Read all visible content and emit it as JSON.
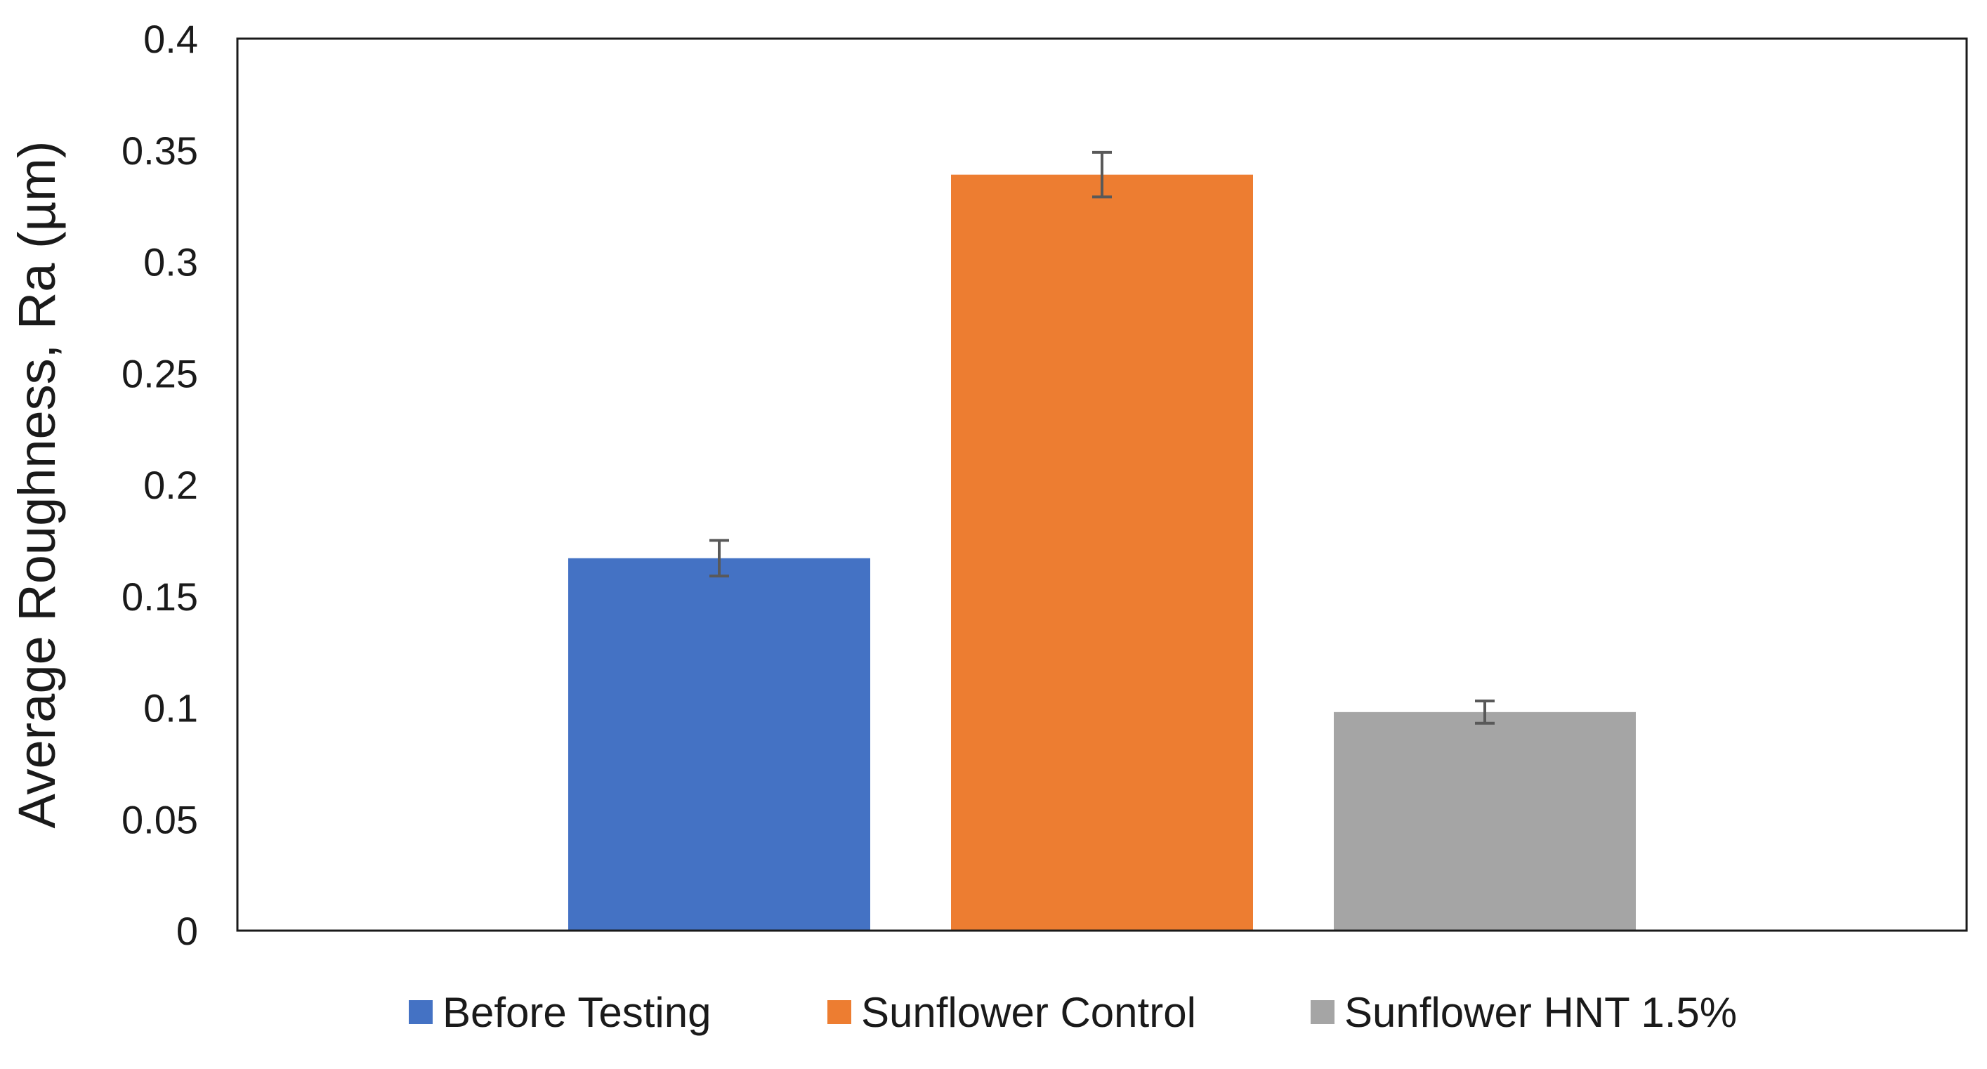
{
  "chart_data": {
    "type": "bar",
    "title": "",
    "xlabel": "",
    "ylabel": "Average Roughness, Ra (µm)",
    "ylim": [
      0,
      0.4
    ],
    "yticks": [
      0,
      0.05,
      0.1,
      0.15,
      0.2,
      0.25,
      0.3,
      0.35,
      0.4
    ],
    "ytick_labels": [
      "0",
      "0.05",
      "0.1",
      "0.15",
      "0.2",
      "0.25",
      "0.3",
      "0.35",
      "0.4"
    ],
    "grid": false,
    "legend_position": "bottom",
    "error_bars": true,
    "series": [
      {
        "name": "Before Testing",
        "value": 0.167,
        "error": 0.008,
        "color": "#4472C4"
      },
      {
        "name": "Sunflower Control",
        "value": 0.339,
        "error": 0.01,
        "color": "#ED7D31"
      },
      {
        "name": "Sunflower HNT 1.5%",
        "value": 0.098,
        "error": 0.005,
        "color": "#A5A5A5"
      }
    ]
  }
}
